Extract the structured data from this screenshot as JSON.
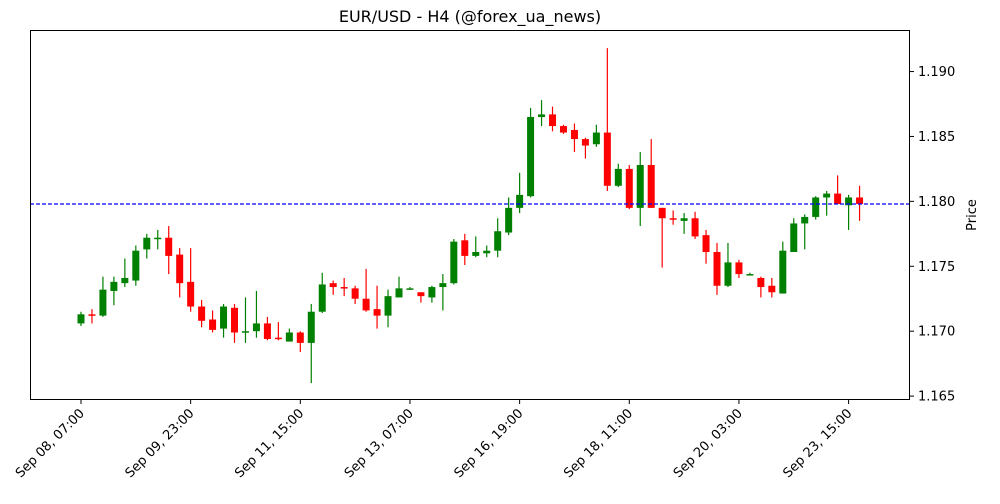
{
  "chart_data": {
    "type": "candlestick",
    "title": "EUR/USD - H4 (@forex_ua_news)",
    "xlabel": "",
    "ylabel": "Price",
    "ylabel_position": "right",
    "ylim": [
      1.1647,
      1.1932
    ],
    "xlim": [
      -4.65,
      75.6
    ],
    "yticks": [
      1.165,
      1.17,
      1.175,
      1.18,
      1.185,
      1.19
    ],
    "ytick_labels": [
      "1.165",
      "1.170",
      "1.175",
      "1.180",
      "1.185",
      "1.190"
    ],
    "xtick_indices": [
      0,
      10,
      20,
      30,
      40,
      50,
      60,
      70
    ],
    "xtick_labels": [
      "Sep 08, 07:00",
      "Sep 09, 23:00",
      "Sep 11, 15:00",
      "Sep 13, 07:00",
      "Sep 16, 19:00",
      "Sep 18, 11:00",
      "Sep 20, 03:00",
      "Sep 23, 15:00"
    ],
    "grid": false,
    "hline": {
      "value": 1.1798,
      "color": "#0000ff",
      "style": "dashed"
    },
    "colors": {
      "up": "#008000",
      "down": "#ff0000"
    },
    "ohlc": [
      [
        1.1706,
        1.1715,
        1.1704,
        1.1713
      ],
      [
        1.1713,
        1.1717,
        1.1706,
        1.1712
      ],
      [
        1.1712,
        1.1742,
        1.1711,
        1.1732
      ],
      [
        1.1731,
        1.1742,
        1.172,
        1.1738
      ],
      [
        1.1737,
        1.1756,
        1.1734,
        1.1741
      ],
      [
        1.1739,
        1.1766,
        1.1735,
        1.1762
      ],
      [
        1.1763,
        1.1775,
        1.1756,
        1.1772
      ],
      [
        1.1771,
        1.1778,
        1.1763,
        1.1772
      ],
      [
        1.1772,
        1.1781,
        1.1744,
        1.1758
      ],
      [
        1.1759,
        1.1764,
        1.1726,
        1.1737
      ],
      [
        1.1738,
        1.1764,
        1.1715,
        1.1719
      ],
      [
        1.1719,
        1.1724,
        1.1703,
        1.1708
      ],
      [
        1.1709,
        1.1716,
        1.1699,
        1.1701
      ],
      [
        1.1702,
        1.1721,
        1.1695,
        1.1719
      ],
      [
        1.1718,
        1.1721,
        1.1691,
        1.1699
      ],
      [
        1.1699,
        1.1726,
        1.1691,
        1.17
      ],
      [
        1.17,
        1.1731,
        1.1695,
        1.1706
      ],
      [
        1.1706,
        1.1711,
        1.1693,
        1.1694
      ],
      [
        1.1695,
        1.1707,
        1.1693,
        1.1694
      ],
      [
        1.1692,
        1.1702,
        1.1692,
        1.1699
      ],
      [
        1.1699,
        1.17,
        1.1684,
        1.1691
      ],
      [
        1.1691,
        1.1721,
        1.166,
        1.1715
      ],
      [
        1.1715,
        1.1745,
        1.1714,
        1.1736
      ],
      [
        1.1737,
        1.1739,
        1.1728,
        1.1734
      ],
      [
        1.1734,
        1.1741,
        1.1727,
        1.1733
      ],
      [
        1.1733,
        1.1735,
        1.1721,
        1.1725
      ],
      [
        1.1725,
        1.1748,
        1.1715,
        1.1716
      ],
      [
        1.1717,
        1.1735,
        1.1702,
        1.1712
      ],
      [
        1.1712,
        1.1732,
        1.1703,
        1.1727
      ],
      [
        1.1726,
        1.1742,
        1.1726,
        1.1733
      ],
      [
        1.1733,
        1.1734,
        1.1732,
        1.1733
      ],
      [
        1.173,
        1.173,
        1.1722,
        1.1727
      ],
      [
        1.1726,
        1.1735,
        1.1722,
        1.1734
      ],
      [
        1.1734,
        1.1744,
        1.1716,
        1.1737
      ],
      [
        1.1737,
        1.1771,
        1.1736,
        1.1769
      ],
      [
        1.177,
        1.1775,
        1.1751,
        1.1758
      ],
      [
        1.1758,
        1.1773,
        1.1757,
        1.1761
      ],
      [
        1.176,
        1.1766,
        1.1757,
        1.1762
      ],
      [
        1.1762,
        1.1787,
        1.1757,
        1.1777
      ],
      [
        1.1776,
        1.1803,
        1.1774,
        1.1795
      ],
      [
        1.1795,
        1.1822,
        1.1791,
        1.1805
      ],
      [
        1.1804,
        1.1872,
        1.1803,
        1.1865
      ],
      [
        1.1865,
        1.1878,
        1.1858,
        1.1867
      ],
      [
        1.1867,
        1.1873,
        1.1854,
        1.1858
      ],
      [
        1.1858,
        1.1859,
        1.1852,
        1.1853
      ],
      [
        1.1855,
        1.186,
        1.1838,
        1.1848
      ],
      [
        1.1848,
        1.1849,
        1.1833,
        1.1843
      ],
      [
        1.1844,
        1.1859,
        1.1842,
        1.1853
      ],
      [
        1.1853,
        1.1918,
        1.1808,
        1.1812
      ],
      [
        1.1812,
        1.1829,
        1.1811,
        1.1825
      ],
      [
        1.1825,
        1.1828,
        1.1794,
        1.1795
      ],
      [
        1.1795,
        1.1838,
        1.1781,
        1.1828
      ],
      [
        1.1828,
        1.1848,
        1.1795,
        1.1795
      ],
      [
        1.1795,
        1.1795,
        1.1749,
        1.1787
      ],
      [
        1.1787,
        1.1793,
        1.1782,
        1.1786
      ],
      [
        1.1785,
        1.1791,
        1.1775,
        1.1787
      ],
      [
        1.1787,
        1.1792,
        1.1771,
        1.1773
      ],
      [
        1.1774,
        1.1778,
        1.1752,
        1.1761
      ],
      [
        1.1761,
        1.1768,
        1.1728,
        1.1735
      ],
      [
        1.1735,
        1.1768,
        1.1734,
        1.1753
      ],
      [
        1.1753,
        1.1755,
        1.1741,
        1.1744
      ],
      [
        1.1744,
        1.1745,
        1.1743,
        1.1744
      ],
      [
        1.1741,
        1.1742,
        1.1726,
        1.1734
      ],
      [
        1.1735,
        1.1741,
        1.1726,
        1.173
      ],
      [
        1.1729,
        1.1769,
        1.1729,
        1.1762
      ],
      [
        1.1761,
        1.1787,
        1.1761,
        1.1783
      ],
      [
        1.1783,
        1.179,
        1.1763,
        1.1788
      ],
      [
        1.1788,
        1.1804,
        1.1786,
        1.1803
      ],
      [
        1.1803,
        1.1808,
        1.1789,
        1.1806
      ],
      [
        1.1806,
        1.182,
        1.1798,
        1.1798
      ],
      [
        1.1797,
        1.1805,
        1.1778,
        1.1803
      ],
      [
        1.1803,
        1.1812,
        1.1785,
        1.1798
      ]
    ]
  }
}
